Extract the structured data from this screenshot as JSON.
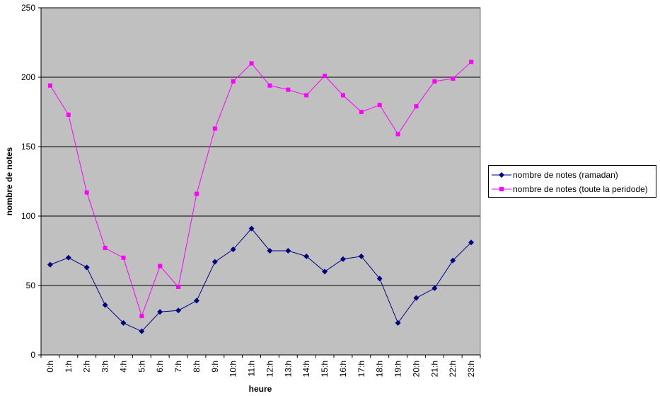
{
  "chart_data": {
    "type": "line",
    "xlabel": "heure",
    "ylabel": "nombre de notes",
    "ylim": [
      0,
      250
    ],
    "yticks": [
      0,
      50,
      100,
      150,
      200,
      250
    ],
    "categories": [
      "0:h",
      "1:h",
      "2:h",
      "3:h",
      "4:h",
      "5:h",
      "6:h",
      "7:h",
      "8:h",
      "9:h",
      "10:h",
      "11:h",
      "12:h",
      "13:h",
      "14:h",
      "15:h",
      "16:h",
      "17:h",
      "18:h",
      "19:h",
      "20:h",
      "21:h",
      "22:h",
      "23:h"
    ],
    "grid": true,
    "legend_position": "right",
    "plot_background": "#c0c0c0",
    "series": [
      {
        "name": "nombre de notes (ramadan)",
        "color": "#000080",
        "marker": "diamond",
        "values": [
          65,
          70,
          63,
          36,
          23,
          17,
          31,
          32,
          39,
          67,
          76,
          91,
          75,
          75,
          71,
          60,
          69,
          71,
          55,
          23,
          41,
          48,
          68,
          81
        ]
      },
      {
        "name": "nombre de notes (toute la peridode)",
        "color": "#ff00ff",
        "marker": "square",
        "values": [
          194,
          173,
          117,
          77,
          70,
          28,
          64,
          49,
          116,
          163,
          197,
          210,
          194,
          191,
          187,
          201,
          187,
          175,
          180,
          159,
          179,
          197,
          199,
          211
        ]
      }
    ]
  }
}
